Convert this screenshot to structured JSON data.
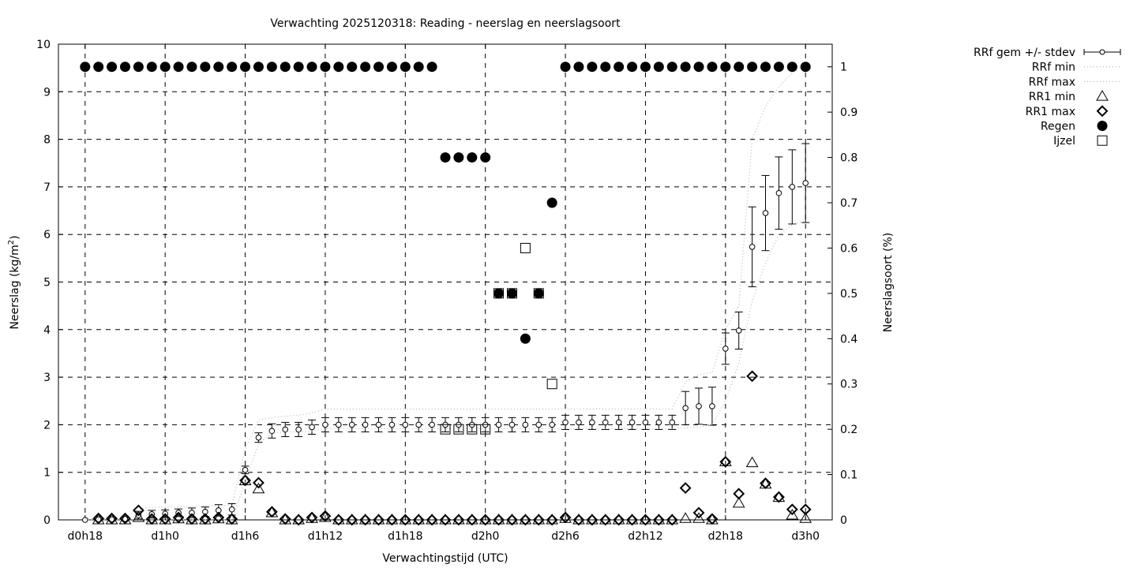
{
  "chart_data": {
    "type": "scatter",
    "title": "Verwachting 2025120318: Reading - neerslag en neerslagsoort",
    "xlabel": "Verwachtingstijd (UTC)",
    "ylabel": "Neerslag (kg/m²)",
    "ylabel_main": "Neerslag (kg/m",
    "ylabel_sup": "2",
    "ylabel_close": ")",
    "y2label": "Neerslagsoort (%)",
    "xlim": [
      "d0h16",
      "d3h2"
    ],
    "ylim": [
      0,
      10
    ],
    "y2lim": [
      0,
      1.05
    ],
    "grid": true,
    "legend_position": "outside-right-top",
    "xticks": [
      "d0h18",
      "d1h0",
      "d1h6",
      "d1h12",
      "d1h18",
      "d2h0",
      "d2h6",
      "d2h12",
      "d2h18",
      "d3h0"
    ],
    "yticks": [
      0,
      1,
      2,
      3,
      4,
      5,
      6,
      7,
      8,
      9,
      10
    ],
    "y2ticks": [
      "0",
      "0.1",
      "0.2",
      "0.3",
      "0.4",
      "0.5",
      "0.6",
      "0.7",
      "0.8",
      "0.9",
      "1"
    ],
    "x": [
      "d0h18",
      "d0h19",
      "d0h20",
      "d0h21",
      "d0h22",
      "d0h23",
      "d1h0",
      "d1h1",
      "d1h2",
      "d1h3",
      "d1h4",
      "d1h5",
      "d1h6",
      "d1h7",
      "d1h8",
      "d1h9",
      "d1h10",
      "d1h11",
      "d1h12",
      "d1h13",
      "d1h14",
      "d1h15",
      "d1h16",
      "d1h17",
      "d1h18",
      "d1h19",
      "d1h20",
      "d1h21",
      "d1h22",
      "d1h23",
      "d2h0",
      "d2h1",
      "d2h2",
      "d2h3",
      "d2h4",
      "d2h5",
      "d2h6",
      "d2h7",
      "d2h8",
      "d2h9",
      "d2h10",
      "d2h11",
      "d2h12",
      "d2h13",
      "d2h14",
      "d2h15",
      "d2h16",
      "d2h17",
      "d2h18",
      "d2h19",
      "d2h20",
      "d2h21",
      "d2h22",
      "d2h23",
      "d3h0"
    ],
    "series": [
      {
        "name": "RRf gem +/- stdev",
        "axis": "y",
        "style": "errorbars",
        "values": [
          0,
          0.01,
          0.01,
          0.02,
          0.1,
          0.12,
          0.13,
          0.15,
          0.15,
          0.17,
          0.2,
          0.22,
          1.05,
          1.73,
          1.87,
          1.9,
          1.9,
          1.95,
          2,
          2,
          2,
          2,
          2,
          2,
          2,
          2,
          2,
          2,
          2,
          2,
          2,
          2,
          2,
          2,
          2,
          2,
          2.05,
          2.05,
          2.05,
          2.05,
          2.05,
          2.05,
          2.05,
          2.05,
          2.05,
          2.35,
          2.39,
          2.39,
          3.6,
          3.98,
          5.74,
          6.45,
          6.87,
          7.0,
          7.08
        ],
        "stdev": [
          0,
          0.02,
          0.02,
          0.03,
          0.08,
          0.08,
          0.08,
          0.08,
          0.1,
          0.1,
          0.12,
          0.12,
          0.08,
          0.1,
          0.15,
          0.15,
          0.15,
          0.15,
          0.15,
          0.15,
          0.15,
          0.15,
          0.15,
          0.15,
          0.15,
          0.15,
          0.15,
          0.15,
          0.15,
          0.15,
          0.15,
          0.15,
          0.15,
          0.15,
          0.15,
          0.15,
          0.15,
          0.15,
          0.15,
          0.15,
          0.15,
          0.15,
          0.15,
          0.15,
          0.15,
          0.35,
          0.38,
          0.4,
          0.33,
          0.39,
          0.84,
          0.79,
          0.76,
          0.78,
          0.83
        ]
      },
      {
        "name": "RRf min",
        "axis": "y",
        "style": "dotted-line",
        "color": "#aaaaaa",
        "values": [
          0,
          0,
          0,
          0,
          0,
          0,
          0,
          0,
          0,
          0,
          0,
          0,
          0.8,
          1.6,
          1.82,
          1.85,
          1.85,
          1.87,
          1.92,
          1.92,
          1.92,
          1.92,
          1.92,
          1.92,
          1.92,
          1.92,
          1.92,
          1.92,
          1.92,
          1.92,
          1.92,
          1.92,
          1.92,
          1.92,
          1.92,
          1.92,
          1.92,
          1.92,
          1.92,
          1.92,
          1.92,
          1.92,
          1.92,
          1.92,
          1.92,
          1.93,
          1.95,
          2.0,
          2.5,
          3.3,
          4.6,
          5.4,
          6.0,
          6.2,
          6.3
        ]
      },
      {
        "name": "RRf max",
        "axis": "y",
        "style": "dotted-line",
        "color": "#aaaaaa",
        "values": [
          0.02,
          0.03,
          0.03,
          0.05,
          0.22,
          0.27,
          0.27,
          0.28,
          0.28,
          0.29,
          0.3,
          0.3,
          1.5,
          2.1,
          2.15,
          2.18,
          2.2,
          2.25,
          2.33,
          2.33,
          2.33,
          2.33,
          2.33,
          2.33,
          2.33,
          2.33,
          2.33,
          2.33,
          2.33,
          2.33,
          2.33,
          2.33,
          2.33,
          2.33,
          2.33,
          2.33,
          2.33,
          2.33,
          2.33,
          2.33,
          2.33,
          2.33,
          2.33,
          2.33,
          2.33,
          2.9,
          3.05,
          3.1,
          4.0,
          4.5,
          8.0,
          8.7,
          9.1,
          9.4,
          9.6
        ]
      },
      {
        "name": "RR1 min",
        "axis": "y",
        "style": "open-triangle",
        "values": [
          null,
          0,
          0,
          0,
          0.05,
          0,
          0,
          0.02,
          0,
          0,
          0.02,
          0,
          0.82,
          0.65,
          0.15,
          0,
          0,
          0.03,
          0.05,
          0,
          0,
          0,
          0,
          0,
          0,
          0,
          0,
          0,
          0,
          0,
          0,
          0,
          0,
          0,
          0,
          0,
          0.03,
          0,
          0,
          0,
          0,
          0,
          0,
          0,
          0,
          0.03,
          0.03,
          0,
          1.22,
          0.35,
          1.2,
          0.75,
          0.47,
          0.1,
          0.03
        ]
      },
      {
        "name": "RR1 max",
        "axis": "y",
        "style": "open-diamond",
        "values": [
          null,
          0.03,
          0.03,
          0.03,
          0.2,
          0.02,
          0.02,
          0.05,
          0.02,
          0.02,
          0.05,
          0.02,
          0.83,
          0.78,
          0.17,
          0.02,
          0,
          0.05,
          0.08,
          0,
          0,
          0,
          0,
          0,
          0,
          0,
          0,
          0,
          0,
          0,
          0,
          0,
          0,
          0,
          0,
          0,
          0.05,
          0,
          0,
          0,
          0,
          0,
          0,
          0,
          0,
          0.67,
          0.15,
          0.02,
          1.22,
          0.55,
          3.02,
          0.77,
          0.48,
          0.22,
          0.22
        ]
      },
      {
        "name": "Regen",
        "axis": "y2",
        "style": "filled-circle",
        "values": [
          1,
          1,
          1,
          1,
          1,
          1,
          1,
          1,
          1,
          1,
          1,
          1,
          1,
          1,
          1,
          1,
          1,
          1,
          1,
          1,
          1,
          1,
          1,
          1,
          1,
          1,
          1,
          0.8,
          0.8,
          0.8,
          0.8,
          0.5,
          0.5,
          0.4,
          0.5,
          0.7,
          1,
          1,
          1,
          1,
          1,
          1,
          1,
          1,
          1,
          1,
          1,
          1,
          1,
          1,
          1,
          1,
          1,
          1,
          1
        ]
      },
      {
        "name": "Ijzel",
        "axis": "y2",
        "style": "open-square",
        "values": [
          null,
          null,
          null,
          null,
          null,
          null,
          null,
          null,
          null,
          null,
          null,
          null,
          null,
          null,
          null,
          null,
          null,
          null,
          null,
          null,
          null,
          null,
          null,
          null,
          null,
          null,
          null,
          0.2,
          0.2,
          0.2,
          0.2,
          0.5,
          0.5,
          0.6,
          0.5,
          0.3,
          null,
          null,
          null,
          null,
          null,
          null,
          null,
          null,
          null,
          null,
          null,
          null,
          null,
          null,
          null,
          null,
          null,
          null,
          null
        ]
      }
    ]
  }
}
